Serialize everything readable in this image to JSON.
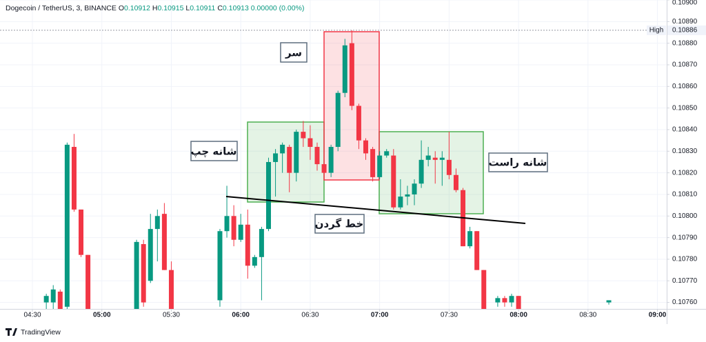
{
  "chart_data": {
    "type": "candlestick",
    "symbol": "Dogecoin / TetherUS, 3, BINANCE",
    "ohlc_legend": [
      {
        "key": "O",
        "text": "0.10912"
      },
      {
        "key": "H",
        "text": "0.10915"
      },
      {
        "key": "L",
        "text": "0.10911"
      },
      {
        "key": "C",
        "text": "0.10913"
      },
      {
        "key": "",
        "text": "0.00000 (0.00%)"
      }
    ],
    "up_color": "#089981",
    "down_color": "#f23645",
    "grid": true,
    "xlim": [
      "04:16",
      "09:04"
    ],
    "xticks": [
      "04:30",
      "05:00",
      "05:30",
      "06:00",
      "06:30",
      "07:00",
      "07:30",
      "08:00",
      "08:30",
      "09:00"
    ],
    "ylim": [
      0.10757,
      0.109
    ],
    "yticks": [
      {
        "value": 0.109,
        "label": "0.10900"
      },
      {
        "value": 0.1089,
        "label": "0.10890"
      },
      {
        "value": 0.1088,
        "label": "0.10880"
      },
      {
        "value": 0.1087,
        "label": "0.10870"
      },
      {
        "value": 0.1086,
        "label": "0.10860"
      },
      {
        "value": 0.1085,
        "label": "0.10850"
      },
      {
        "value": 0.1084,
        "label": "0.10840"
      },
      {
        "value": 0.1083,
        "label": "0.10830"
      },
      {
        "value": 0.1082,
        "label": "0.10820"
      },
      {
        "value": 0.1081,
        "label": "0.10810"
      },
      {
        "value": 0.108,
        "label": "0.10800"
      },
      {
        "value": 0.1079,
        "label": "0.10790"
      },
      {
        "value": 0.1078,
        "label": "0.10780"
      },
      {
        "value": 0.1077,
        "label": "0.10770"
      },
      {
        "value": 0.1076,
        "label": "0.10760"
      }
    ],
    "high_line": {
      "label": "High",
      "value": 0.10886
    },
    "x": [
      "04:36",
      "04:39",
      "04:42",
      "04:45",
      "04:48",
      "04:51",
      "04:54",
      "05:15",
      "05:18",
      "05:21",
      "05:24",
      "05:27",
      "05:30",
      "05:51",
      "05:54",
      "05:57",
      "06:00",
      "06:03",
      "06:06",
      "06:09",
      "06:12",
      "06:15",
      "06:18",
      "06:21",
      "06:24",
      "06:27",
      "06:30",
      "06:33",
      "06:36",
      "06:39",
      "06:42",
      "06:45",
      "06:48",
      "06:51",
      "06:54",
      "06:57",
      "07:00",
      "07:03",
      "07:06",
      "07:09",
      "07:12",
      "07:15",
      "07:18",
      "07:21",
      "07:24",
      "07:27",
      "07:30",
      "07:33",
      "07:36",
      "07:39",
      "07:42",
      "07:45",
      "07:51",
      "07:54",
      "07:57",
      "08:00",
      "08:39"
    ],
    "open": [
      0.1076,
      0.1076,
      0.10765,
      0.10758,
      0.10832,
      0.10803,
      0.10782,
      0.10757,
      0.10787,
      0.1077,
      0.10794,
      0.10801,
      0.10775,
      0.10761,
      0.10793,
      0.108,
      0.10789,
      0.10796,
      0.10777,
      0.10781,
      0.10794,
      0.10825,
      0.10829,
      0.10832,
      0.1082,
      0.10839,
      0.10836,
      0.10832,
      0.10824,
      0.1082,
      0.10832,
      0.10857,
      0.1088,
      0.10851,
      0.10835,
      0.10831,
      0.10818,
      0.10828,
      0.10828,
      0.10804,
      0.10809,
      0.1081,
      0.10815,
      0.10826,
      0.10827,
      0.10826,
      0.10826,
      0.10819,
      0.10812,
      0.10786,
      0.10793,
      0.10775,
      0.1076,
      0.10762,
      0.1076,
      0.10763,
      0.1076
    ],
    "high": [
      0.10764,
      0.10768,
      0.10766,
      0.10834,
      0.10838,
      0.10803,
      0.10782,
      0.10789,
      0.10789,
      0.10801,
      0.10803,
      0.10806,
      0.10779,
      0.10794,
      0.10814,
      0.10805,
      0.10801,
      0.10803,
      0.10782,
      0.10795,
      0.10827,
      0.10831,
      0.10834,
      0.10833,
      0.1084,
      0.10844,
      0.10842,
      0.10834,
      0.10826,
      0.10833,
      0.10858,
      0.10882,
      0.10886,
      0.10852,
      0.10836,
      0.10832,
      0.1083,
      0.10831,
      0.10831,
      0.10817,
      0.10814,
      0.10817,
      0.10835,
      0.10832,
      0.1083,
      0.1083,
      0.10839,
      0.10822,
      0.10813,
      0.10795,
      0.10793,
      0.10775,
      0.10763,
      0.10763,
      0.10764,
      0.10763,
      0.10761
    ],
    "low": [
      0.10757,
      0.10757,
      0.10757,
      0.10757,
      0.10802,
      0.10781,
      0.10757,
      0.10757,
      0.10758,
      0.10769,
      0.10779,
      0.10775,
      0.10757,
      0.10758,
      0.1079,
      0.10786,
      0.10788,
      0.10771,
      0.10776,
      0.10761,
      0.10793,
      0.10809,
      0.1082,
      0.10811,
      0.10816,
      0.10832,
      0.10826,
      0.10821,
      0.10818,
      0.10818,
      0.1083,
      0.10855,
      0.10849,
      0.10831,
      0.10826,
      0.10816,
      0.10817,
      0.10827,
      0.10803,
      0.10803,
      0.10805,
      0.10805,
      0.10813,
      0.10823,
      0.10815,
      0.10814,
      0.10817,
      0.10811,
      0.10786,
      0.10785,
      0.10775,
      0.10757,
      0.10758,
      0.10758,
      0.10758,
      0.10757,
      0.10759
    ],
    "close": [
      0.10763,
      0.10766,
      0.10757,
      0.10833,
      0.10803,
      0.10782,
      0.10757,
      0.10788,
      0.1076,
      0.10794,
      0.108,
      0.10775,
      0.10757,
      0.10793,
      0.108,
      0.10789,
      0.10796,
      0.10777,
      0.10781,
      0.10794,
      0.10825,
      0.10829,
      0.10833,
      0.1082,
      0.10839,
      0.10836,
      0.10832,
      0.10824,
      0.1082,
      0.10832,
      0.10857,
      0.10879,
      0.10851,
      0.10835,
      0.10829,
      0.10818,
      0.10828,
      0.1083,
      0.10804,
      0.10809,
      0.1081,
      0.10815,
      0.10826,
      0.10828,
      0.10826,
      0.10827,
      0.10819,
      0.10812,
      0.10786,
      0.10793,
      0.10775,
      0.10757,
      0.10762,
      0.1076,
      0.10763,
      0.10757,
      0.10761
    ],
    "annotations": {
      "head": "سر",
      "left_shoulder": "شانه چپ",
      "right_shoulder": "شانه راست",
      "neckline": "خط گردن"
    },
    "footer": "TradingView"
  }
}
